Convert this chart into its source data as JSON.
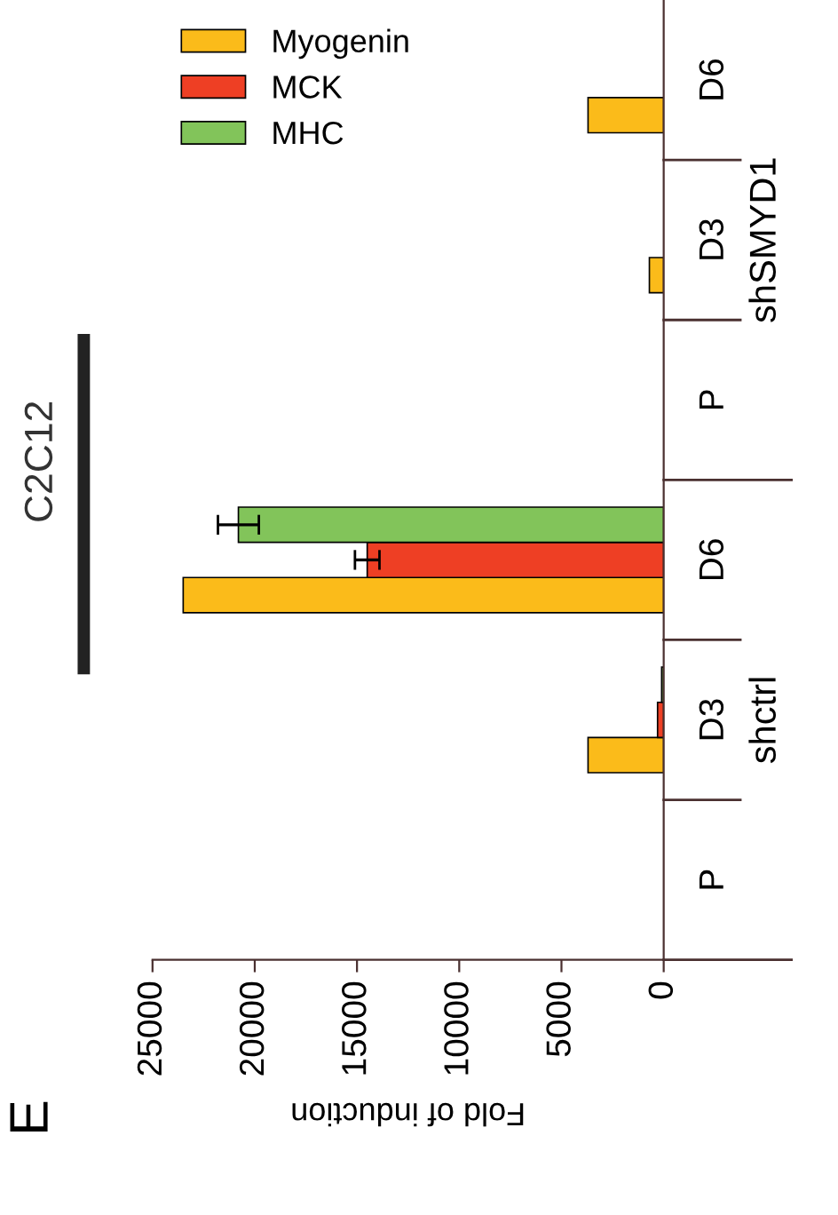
{
  "chart_data": {
    "type": "bar",
    "orientation": "horizontal",
    "title": "C2C12",
    "xlabel": "Fold of induction",
    "categories": [
      "D6",
      "D3",
      "P",
      "D6",
      "D3",
      "P"
    ],
    "series": [
      {
        "name": "Myogenin",
        "color": "#fbbb1a",
        "values": [
          3700,
          700,
          0,
          23500,
          3700,
          0
        ],
        "errors": [
          null,
          null,
          null,
          null,
          null,
          null
        ]
      },
      {
        "name": "MCK",
        "color": "#ee3f24",
        "values": [
          0,
          0,
          0,
          14500,
          300,
          0
        ],
        "errors": [
          null,
          null,
          null,
          600,
          null,
          null
        ]
      },
      {
        "name": "MHC",
        "color": "#82c45a",
        "values": [
          0,
          0,
          0,
          20800,
          100,
          0
        ],
        "errors": [
          null,
          null,
          null,
          1000,
          null,
          null
        ]
      }
    ],
    "xlim": [
      25000,
      0
    ],
    "xticks": [
      25000,
      20000,
      15000,
      10000,
      5000,
      0
    ],
    "annotations": [
      "shSMYD1",
      "shctrl",
      "E"
    ],
    "legend": "top left",
    "grid": false
  }
}
